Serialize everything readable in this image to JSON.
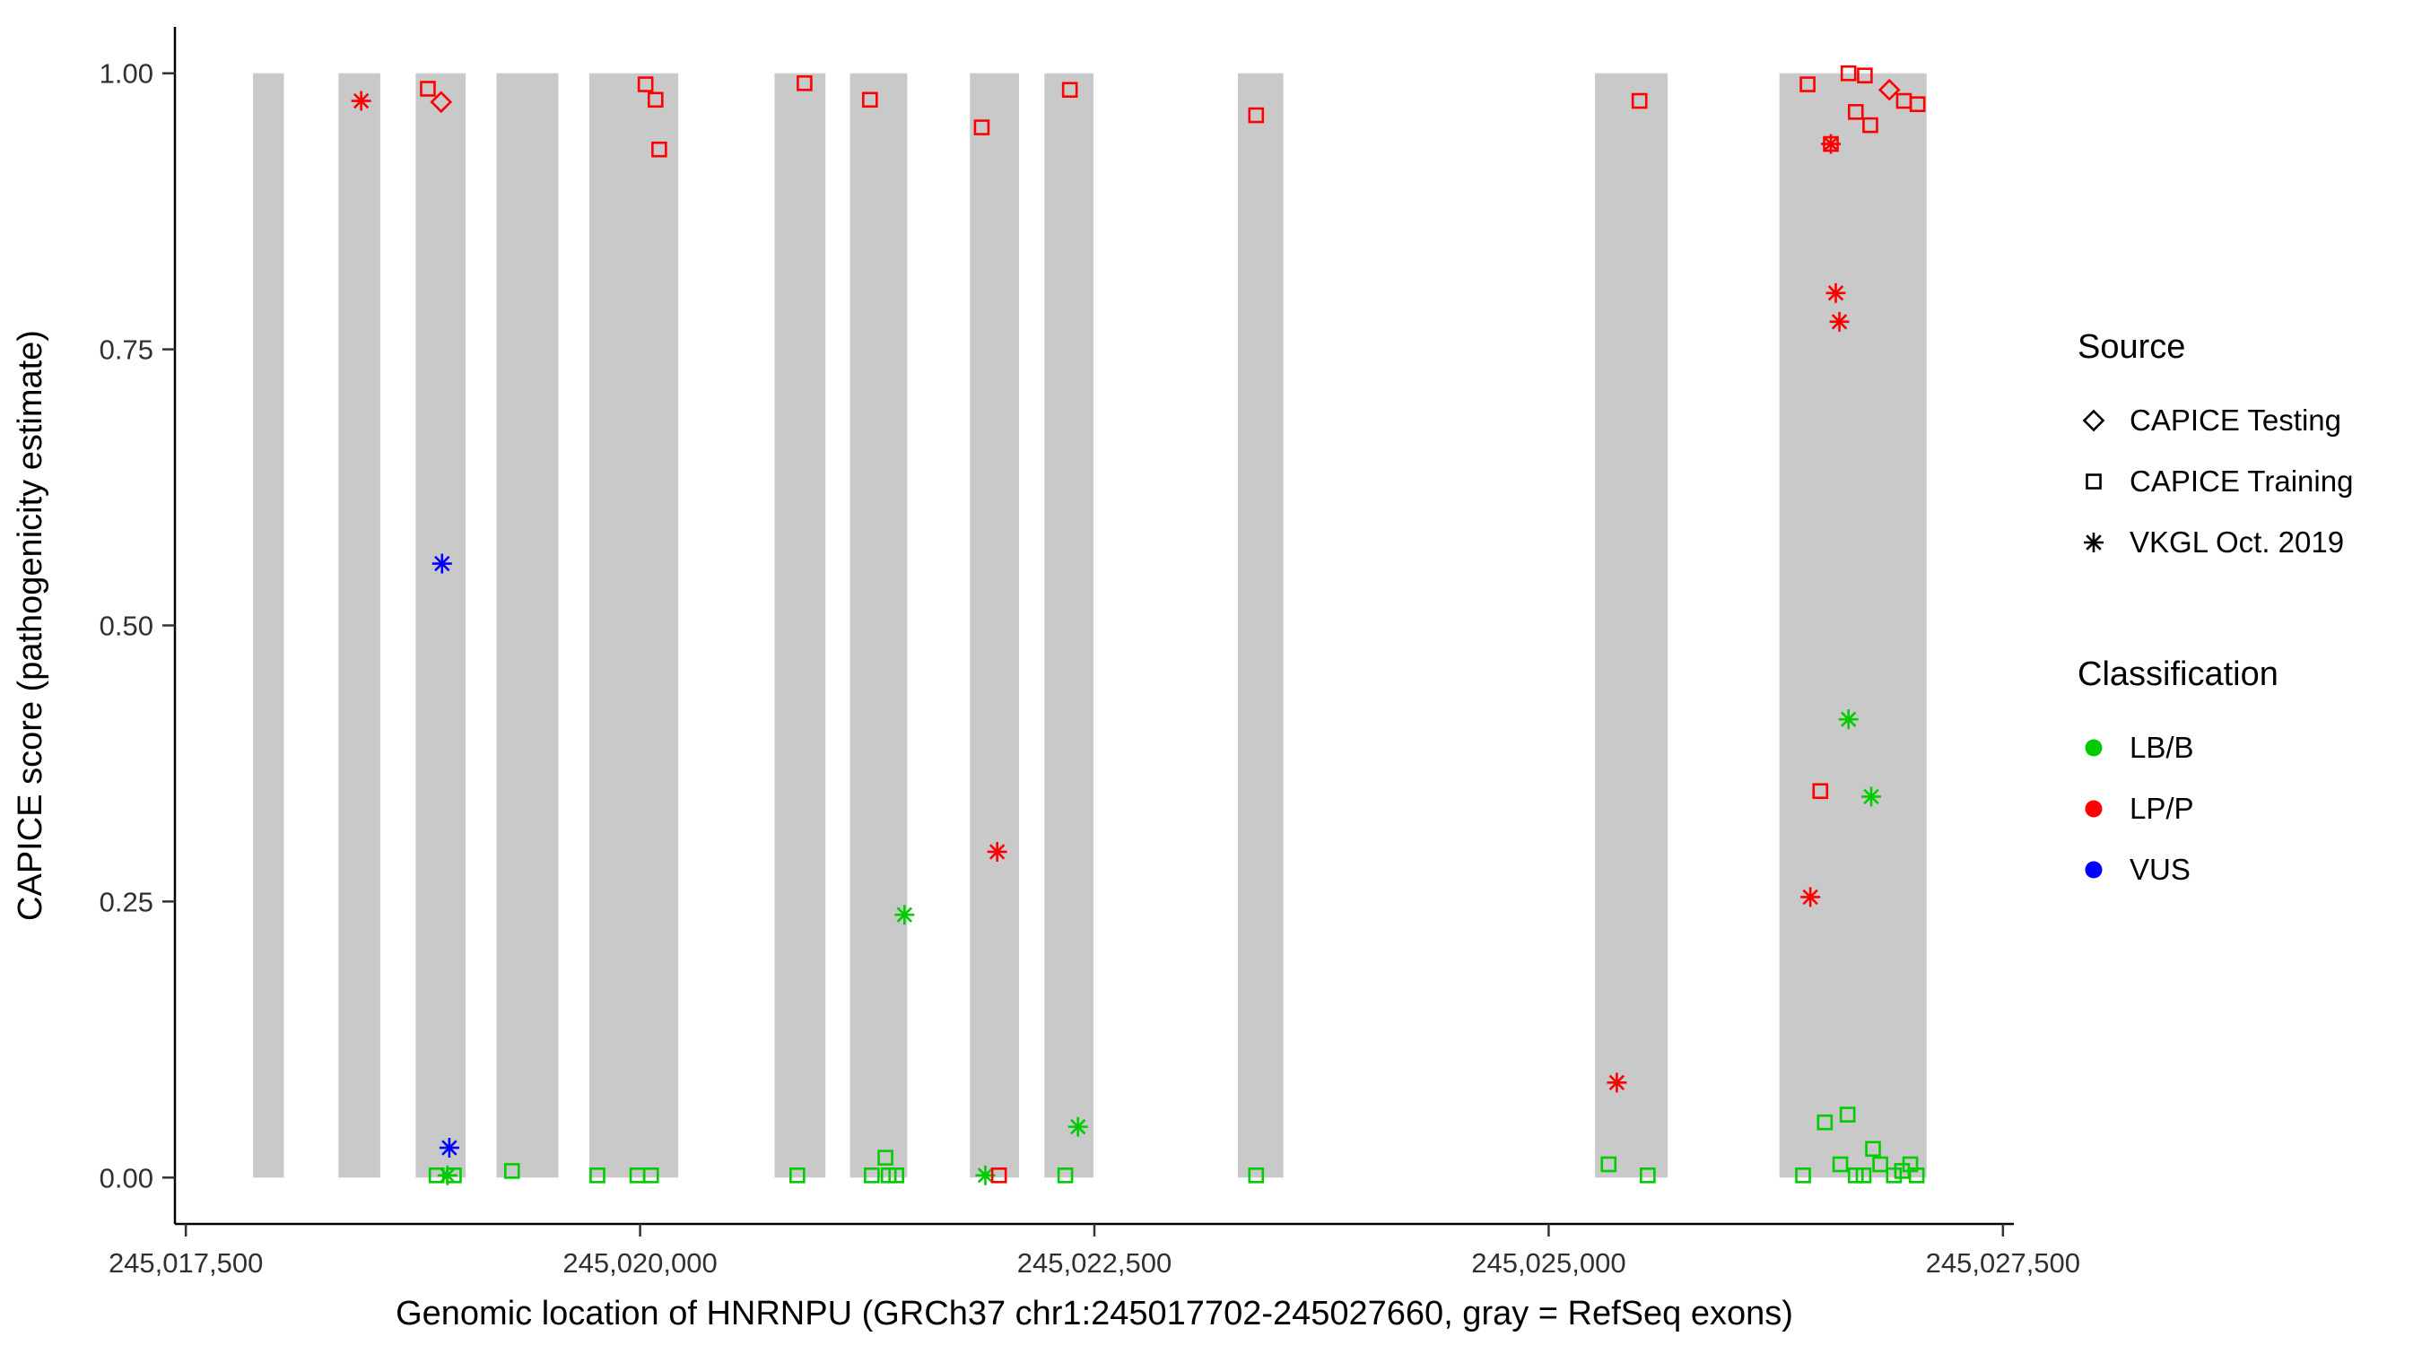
{
  "legend": {
    "source_title": "Source",
    "classification_title": "Classification"
  },
  "chart_data": {
    "type": "scatter",
    "title": "",
    "xlabel": "Genomic location of HNRNPU (GRCh37 chr1:245017702-245027660, gray = RefSeq exons)",
    "ylabel": "CAPICE score (pathogenicity estimate)",
    "xlim": [
      245017440,
      245027560
    ],
    "ylim": [
      -0.042,
      1.042
    ],
    "x_ticks": [
      {
        "value": 245017500,
        "label": "245,017,500"
      },
      {
        "value": 245020000,
        "label": "245,020,000"
      },
      {
        "value": 245022500,
        "label": "245,022,500"
      },
      {
        "value": 245025000,
        "label": "245,025,000"
      },
      {
        "value": 245027500,
        "label": "245,027,500"
      }
    ],
    "y_ticks": [
      {
        "value": 0.0,
        "label": "0.00"
      },
      {
        "value": 0.25,
        "label": "0.25"
      },
      {
        "value": 0.5,
        "label": "0.50"
      },
      {
        "value": 0.75,
        "label": "0.75"
      },
      {
        "value": 1.0,
        "label": "1.00"
      }
    ],
    "grid": false,
    "legend_position": "right",
    "exon_color": "#C9C9C9",
    "exon_y_range": [
      0.0,
      1.0
    ],
    "exons": [
      [
        245017870,
        245018040
      ],
      [
        245018340,
        245018570
      ],
      [
        245018765,
        245019040
      ],
      [
        245019210,
        245019550
      ],
      [
        245019720,
        245020210
      ],
      [
        245020740,
        245021020
      ],
      [
        245021155,
        245021470
      ],
      [
        245021815,
        245022085
      ],
      [
        245022225,
        245022495
      ],
      [
        245023290,
        245023540
      ],
      [
        245025255,
        245025655
      ],
      [
        245026270,
        245027080
      ]
    ],
    "sources": [
      {
        "key": "testing",
        "label": "CAPICE Testing",
        "marker": "diamond"
      },
      {
        "key": "training",
        "label": "CAPICE Training",
        "marker": "square"
      },
      {
        "key": "vkgl",
        "label": "VKGL Oct. 2019",
        "marker": "asterisk"
      }
    ],
    "classifications": [
      {
        "key": "LB/B",
        "label": "LB/B",
        "color": "#00CC00"
      },
      {
        "key": "LP/P",
        "label": "LP/P",
        "color": "#FF0000"
      },
      {
        "key": "VUS",
        "label": "VUS",
        "color": "#0000FF"
      }
    ],
    "points": [
      {
        "x": 245018465,
        "y": 0.975,
        "source": "vkgl",
        "class": "LP/P"
      },
      {
        "x": 245018832,
        "y": 0.986,
        "source": "training",
        "class": "LP/P"
      },
      {
        "x": 245018905,
        "y": 0.974,
        "source": "testing",
        "class": "LP/P"
      },
      {
        "x": 245018910,
        "y": 0.556,
        "source": "vkgl",
        "class": "VUS"
      },
      {
        "x": 245018950,
        "y": 0.027,
        "source": "vkgl",
        "class": "VUS"
      },
      {
        "x": 245018880,
        "y": 0.002,
        "source": "training",
        "class": "LB/B"
      },
      {
        "x": 245018940,
        "y": 0.002,
        "source": "vkgl",
        "class": "LB/B"
      },
      {
        "x": 245018975,
        "y": 0.002,
        "source": "training",
        "class": "LB/B"
      },
      {
        "x": 245019295,
        "y": 0.006,
        "source": "training",
        "class": "LB/B"
      },
      {
        "x": 245019765,
        "y": 0.002,
        "source": "training",
        "class": "LB/B"
      },
      {
        "x": 245019985,
        "y": 0.002,
        "source": "training",
        "class": "LB/B"
      },
      {
        "x": 245020060,
        "y": 0.002,
        "source": "training",
        "class": "LB/B"
      },
      {
        "x": 245020030,
        "y": 0.99,
        "source": "training",
        "class": "LP/P"
      },
      {
        "x": 245020085,
        "y": 0.976,
        "source": "training",
        "class": "LP/P"
      },
      {
        "x": 245020105,
        "y": 0.931,
        "source": "training",
        "class": "LP/P"
      },
      {
        "x": 245020905,
        "y": 0.991,
        "source": "training",
        "class": "LP/P"
      },
      {
        "x": 245020865,
        "y": 0.002,
        "source": "training",
        "class": "LB/B"
      },
      {
        "x": 245021265,
        "y": 0.976,
        "source": "training",
        "class": "LP/P"
      },
      {
        "x": 245021275,
        "y": 0.002,
        "source": "training",
        "class": "LB/B"
      },
      {
        "x": 245021350,
        "y": 0.018,
        "source": "training",
        "class": "LB/B"
      },
      {
        "x": 245021368,
        "y": 0.002,
        "source": "training",
        "class": "LB/B"
      },
      {
        "x": 245021410,
        "y": 0.002,
        "source": "training",
        "class": "LB/B"
      },
      {
        "x": 245021455,
        "y": 0.238,
        "source": "vkgl",
        "class": "LB/B"
      },
      {
        "x": 245021880,
        "y": 0.951,
        "source": "training",
        "class": "LP/P"
      },
      {
        "x": 245021900,
        "y": 0.002,
        "source": "vkgl",
        "class": "LB/B"
      },
      {
        "x": 245021965,
        "y": 0.295,
        "source": "vkgl",
        "class": "LP/P"
      },
      {
        "x": 245021975,
        "y": 0.002,
        "source": "training",
        "class": "LP/P"
      },
      {
        "x": 245022365,
        "y": 0.985,
        "source": "training",
        "class": "LP/P"
      },
      {
        "x": 245022340,
        "y": 0.002,
        "source": "training",
        "class": "LB/B"
      },
      {
        "x": 245022410,
        "y": 0.046,
        "source": "vkgl",
        "class": "LB/B"
      },
      {
        "x": 245023390,
        "y": 0.962,
        "source": "training",
        "class": "LP/P"
      },
      {
        "x": 245023390,
        "y": 0.002,
        "source": "training",
        "class": "LB/B"
      },
      {
        "x": 245025330,
        "y": 0.012,
        "source": "training",
        "class": "LB/B"
      },
      {
        "x": 245025375,
        "y": 0.086,
        "source": "vkgl",
        "class": "LP/P"
      },
      {
        "x": 245025500,
        "y": 0.975,
        "source": "training",
        "class": "LP/P"
      },
      {
        "x": 245025545,
        "y": 0.002,
        "source": "training",
        "class": "LB/B"
      },
      {
        "x": 245026400,
        "y": 0.002,
        "source": "training",
        "class": "LB/B"
      },
      {
        "x": 245026425,
        "y": 0.99,
        "source": "training",
        "class": "LP/P"
      },
      {
        "x": 245026440,
        "y": 0.254,
        "source": "vkgl",
        "class": "LP/P"
      },
      {
        "x": 245026495,
        "y": 0.35,
        "source": "training",
        "class": "LP/P"
      },
      {
        "x": 245026520,
        "y": 0.05,
        "source": "training",
        "class": "LB/B"
      },
      {
        "x": 245026553,
        "y": 0.936,
        "source": "training",
        "class": "LP/P"
      },
      {
        "x": 245026553,
        "y": 0.936,
        "source": "vkgl",
        "class": "LP/P"
      },
      {
        "x": 245026580,
        "y": 0.801,
        "source": "vkgl",
        "class": "LP/P"
      },
      {
        "x": 245026600,
        "y": 0.775,
        "source": "vkgl",
        "class": "LP/P"
      },
      {
        "x": 245026605,
        "y": 0.012,
        "source": "training",
        "class": "LB/B"
      },
      {
        "x": 245026645,
        "y": 0.057,
        "source": "training",
        "class": "LB/B"
      },
      {
        "x": 245026650,
        "y": 0.415,
        "source": "vkgl",
        "class": "LB/B"
      },
      {
        "x": 245026650,
        "y": 1.0,
        "source": "training",
        "class": "LP/P"
      },
      {
        "x": 245026690,
        "y": 0.965,
        "source": "training",
        "class": "LP/P"
      },
      {
        "x": 245026690,
        "y": 0.002,
        "source": "training",
        "class": "LB/B"
      },
      {
        "x": 245026733,
        "y": 0.002,
        "source": "training",
        "class": "LB/B"
      },
      {
        "x": 245026740,
        "y": 0.998,
        "source": "training",
        "class": "LP/P"
      },
      {
        "x": 245026770,
        "y": 0.953,
        "source": "training",
        "class": "LP/P"
      },
      {
        "x": 245026775,
        "y": 0.345,
        "source": "vkgl",
        "class": "LB/B"
      },
      {
        "x": 245026785,
        "y": 0.026,
        "source": "training",
        "class": "LB/B"
      },
      {
        "x": 245026825,
        "y": 0.012,
        "source": "training",
        "class": "LB/B"
      },
      {
        "x": 245026875,
        "y": 0.985,
        "source": "testing",
        "class": "LP/P"
      },
      {
        "x": 245026900,
        "y": 0.002,
        "source": "training",
        "class": "LB/B"
      },
      {
        "x": 245026945,
        "y": 0.006,
        "source": "training",
        "class": "LB/B"
      },
      {
        "x": 245026955,
        "y": 0.975,
        "source": "training",
        "class": "LP/P"
      },
      {
        "x": 245026990,
        "y": 0.012,
        "source": "training",
        "class": "LB/B"
      },
      {
        "x": 245027025,
        "y": 0.002,
        "source": "training",
        "class": "LB/B"
      },
      {
        "x": 245027030,
        "y": 0.972,
        "source": "training",
        "class": "LP/P"
      }
    ]
  }
}
